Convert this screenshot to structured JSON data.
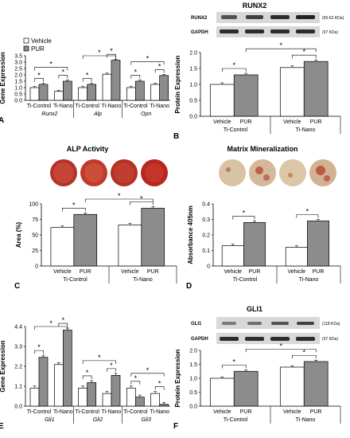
{
  "legend": {
    "vehicle": "Vehicle",
    "pur": "PUR"
  },
  "colors": {
    "vehicle": "#ffffff",
    "pur": "#8c8c8c",
    "axis": "#000000",
    "blot_bg": "#d8d8d8",
    "band": "#1a1a1a",
    "well_red": "#c0392b"
  },
  "blots": {
    "runx2": {
      "title": "RUNX2",
      "rows": [
        {
          "label": "RUNX2",
          "size": "(55-62 KDa)"
        },
        {
          "label": "GAPDH",
          "size": "(37 KDa)"
        }
      ]
    },
    "gli1": {
      "title": "GLI1",
      "rows": [
        {
          "label": "GLI1",
          "size": "(118 KDa)"
        },
        {
          "label": "GAPDH",
          "size": "(37 KDa)"
        }
      ]
    }
  },
  "photos": {
    "alp": {
      "title": "ALP Activity"
    },
    "matrix": {
      "title": "Matrix Mineralization"
    }
  },
  "chart_data": [
    {
      "id": "A",
      "panel_label": "A",
      "type": "bar",
      "ylabel": "Gene Expression",
      "ylim": [
        0,
        3.5
      ],
      "yticks": [
        "0.0",
        "0.5",
        "1.0",
        "1.5",
        "2.0",
        "2.5",
        "3.0",
        "3.5"
      ],
      "groups": [
        {
          "gene": "Runx2",
          "pairs": [
            {
              "label": "Ti-Control",
              "vehicle": 1.0,
              "pur": 1.25
            },
            {
              "label": "Ti-Nano",
              "vehicle": 0.7,
              "pur": 1.5
            }
          ]
        },
        {
          "gene": "Alp",
          "pairs": [
            {
              "label": "Ti-Control",
              "vehicle": 1.0,
              "pur": 1.25
            },
            {
              "label": "Ti-Nano",
              "vehicle": 2.05,
              "pur": 3.15
            }
          ]
        },
        {
          "gene": "Opn",
          "pairs": [
            {
              "label": "Ti-Control",
              "vehicle": 1.0,
              "pur": 1.5
            },
            {
              "label": "Ti-Nano",
              "vehicle": 1.25,
              "pur": 1.95
            }
          ]
        }
      ],
      "sig": "*"
    },
    {
      "id": "B",
      "panel_label": "B",
      "type": "bar",
      "ylabel": "Protein Expression",
      "ylim": [
        0,
        2.0
      ],
      "yticks": [
        "0.0",
        "0.5",
        "1.0",
        "1.5",
        "2.0"
      ],
      "categories": [
        "Vehicle",
        "PUR",
        "Vehicle",
        "PUR"
      ],
      "group_labels": [
        "Ti-Control",
        "Ti-Nano"
      ],
      "values": [
        1.0,
        1.3,
        1.53,
        1.72
      ],
      "sig": "*"
    },
    {
      "id": "C",
      "panel_label": "C",
      "type": "bar",
      "ylabel": "Area (%)",
      "ylim": [
        0,
        100
      ],
      "yticks": [
        "0",
        "25",
        "50",
        "75",
        "100"
      ],
      "categories": [
        "Vehicle",
        "PUR",
        "Vehicle",
        "PUR"
      ],
      "group_labels": [
        "Ti-Control",
        "Ti-Nano"
      ],
      "values": [
        62,
        83,
        66,
        93
      ],
      "sig": "*"
    },
    {
      "id": "D",
      "panel_label": "D",
      "type": "bar",
      "ylabel": "Absorbance 405nm",
      "ylim": [
        0,
        0.4
      ],
      "yticks": [
        "0",
        "0.1",
        "0.2",
        "0.3",
        "0.4"
      ],
      "categories": [
        "Vehicle",
        "PUR",
        "Vehicle",
        "PUR"
      ],
      "group_labels": [
        "Ti-Control",
        "Ti-Nano"
      ],
      "values": [
        0.13,
        0.28,
        0.12,
        0.29
      ],
      "sig": "*"
    },
    {
      "id": "E",
      "panel_label": "E",
      "type": "bar",
      "ylabel": "Gene Expression",
      "ylim": [
        0,
        4.4
      ],
      "yticks": [
        "0.0",
        "1.1",
        "2.2",
        "3.3",
        "4.4"
      ],
      "groups": [
        {
          "gene": "Gli1",
          "pairs": [
            {
              "label": "Ti-Control",
              "vehicle": 1.0,
              "pur": 2.7
            },
            {
              "label": "Ti-Nano",
              "vehicle": 2.3,
              "pur": 4.2
            }
          ]
        },
        {
          "gene": "Gli2",
          "pairs": [
            {
              "label": "Ti-Control",
              "vehicle": 1.0,
              "pur": 1.3
            },
            {
              "label": "Ti-Nano",
              "vehicle": 0.7,
              "pur": 1.7
            }
          ]
        },
        {
          "gene": "Gli3",
          "pairs": [
            {
              "label": "Ti-Control",
              "vehicle": 1.0,
              "pur": 0.5
            },
            {
              "label": "Ti-Nano",
              "vehicle": 0.7,
              "pur": 0.1
            }
          ]
        }
      ],
      "sig": "*"
    },
    {
      "id": "F",
      "panel_label": "F",
      "type": "bar",
      "ylabel": "Protein Expression",
      "ylim": [
        0,
        2.0
      ],
      "yticks": [
        "0.0",
        "0.5",
        "1.0",
        "1.5",
        "2.0"
      ],
      "categories": [
        "Vehicle",
        "PUR",
        "Vehicle",
        "PUR"
      ],
      "group_labels": [
        "Ti-Control",
        "Ti-Nano"
      ],
      "values": [
        1.0,
        1.25,
        1.4,
        1.6
      ],
      "sig": "*"
    }
  ]
}
